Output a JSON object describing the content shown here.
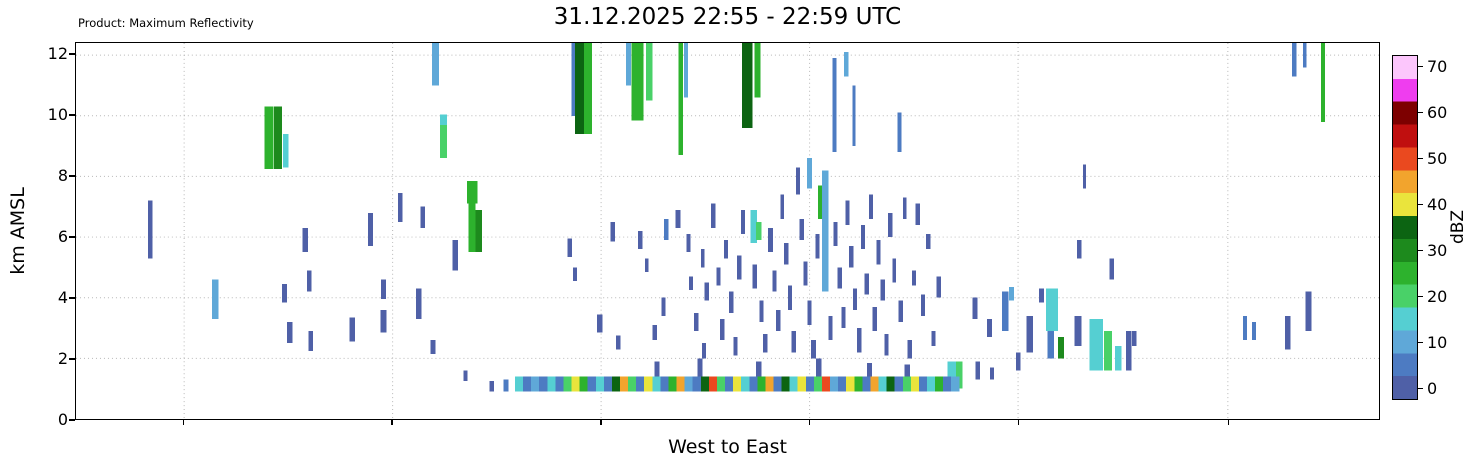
{
  "chart_data": {
    "type": "bar",
    "title": "31.12.2025 22:55 - 22:59 UTC",
    "product_label": "Product: Maximum Reflectivity",
    "xlabel": "West to East",
    "ylabel": "km AMSL",
    "xlim": [
      0,
      100
    ],
    "ylim": [
      0,
      12.4
    ],
    "yticks": [
      0,
      2,
      4,
      6,
      8,
      10,
      12
    ],
    "xticks": [
      8.3,
      24.3,
      40.3,
      56.3,
      72.3,
      88.4
    ],
    "grid": true,
    "colorbar": {
      "label": "dBZ",
      "ticks": [
        0,
        10,
        20,
        30,
        40,
        50,
        60,
        70
      ],
      "vmin": -2.5,
      "vmax": 72.5,
      "bands": [
        {
          "lo": -2.5,
          "hi": 2.5,
          "color": "#4f60a7"
        },
        {
          "lo": 2.5,
          "hi": 7.5,
          "color": "#4d7bc2"
        },
        {
          "lo": 7.5,
          "hi": 12.5,
          "color": "#5fa8d8"
        },
        {
          "lo": 12.5,
          "hi": 17.5,
          "color": "#55cfd2"
        },
        {
          "lo": 17.5,
          "hi": 22.5,
          "color": "#49d168"
        },
        {
          "lo": 22.5,
          "hi": 27.5,
          "color": "#2db22d"
        },
        {
          "lo": 27.5,
          "hi": 32.5,
          "color": "#1d8a1d"
        },
        {
          "lo": 32.5,
          "hi": 37.5,
          "color": "#0c6412"
        },
        {
          "lo": 37.5,
          "hi": 42.5,
          "color": "#eae43c"
        },
        {
          "lo": 42.5,
          "hi": 47.5,
          "color": "#f2a42d"
        },
        {
          "lo": 47.5,
          "hi": 52.5,
          "color": "#ea491f"
        },
        {
          "lo": 52.5,
          "hi": 57.5,
          "color": "#c00f0f"
        },
        {
          "lo": 57.5,
          "hi": 62.5,
          "color": "#7d0000"
        },
        {
          "lo": 62.5,
          "hi": 67.5,
          "color": "#ef3def"
        },
        {
          "lo": 67.5,
          "hi": 72.5,
          "color": "#fcc6fc"
        }
      ]
    },
    "echo_fields": [
      "x",
      "y0_km",
      "y1_km",
      "dbz",
      "width_x"
    ],
    "surface_layer": {
      "y0": 0.9,
      "y1": 1.4,
      "x_start": 34.0,
      "step": 0.62,
      "width": 0.62,
      "dbz": [
        14,
        5,
        10,
        5,
        14,
        5,
        20,
        40,
        25,
        5,
        14,
        5,
        35,
        45,
        20,
        5,
        40,
        14,
        5,
        25,
        45,
        10,
        5,
        35,
        50,
        20,
        5,
        40,
        14,
        5,
        25,
        45,
        5,
        35,
        14,
        40,
        5,
        20,
        50,
        10,
        5,
        40,
        25,
        5,
        45,
        14,
        35,
        5,
        20,
        40,
        5,
        14,
        25,
        5,
        10
      ]
    },
    "echoes": [
      [
        5.7,
        5.3,
        7.2,
        2,
        0.35
      ],
      [
        10.7,
        3.3,
        4.6,
        10,
        0.5
      ],
      [
        14.8,
        8.25,
        10.3,
        25,
        0.7
      ],
      [
        15.5,
        8.25,
        10.3,
        30,
        0.6
      ],
      [
        16.1,
        8.3,
        9.4,
        14,
        0.45
      ],
      [
        16.0,
        3.85,
        4.45,
        2,
        0.4
      ],
      [
        16.4,
        2.5,
        3.2,
        2,
        0.4
      ],
      [
        17.6,
        5.5,
        6.3,
        2,
        0.4
      ],
      [
        17.9,
        4.2,
        4.9,
        2,
        0.35
      ],
      [
        18.0,
        2.25,
        2.9,
        2,
        0.35
      ],
      [
        21.2,
        2.55,
        3.35,
        2,
        0.45
      ],
      [
        22.6,
        5.7,
        6.8,
        2,
        0.4
      ],
      [
        23.6,
        2.85,
        3.6,
        2,
        0.45
      ],
      [
        23.6,
        3.95,
        4.6,
        2,
        0.35
      ],
      [
        24.9,
        6.5,
        7.45,
        2,
        0.35
      ],
      [
        26.3,
        3.3,
        4.3,
        2,
        0.45
      ],
      [
        26.6,
        6.3,
        7.0,
        2,
        0.35
      ],
      [
        27.6,
        11.0,
        12.4,
        10,
        0.55
      ],
      [
        27.4,
        2.15,
        2.6,
        2,
        0.35
      ],
      [
        28.2,
        8.6,
        9.7,
        22,
        0.55
      ],
      [
        28.2,
        9.7,
        10.05,
        14,
        0.55
      ],
      [
        29.1,
        4.9,
        5.9,
        2,
        0.4
      ],
      [
        29.9,
        1.25,
        1.6,
        2,
        0.3
      ],
      [
        30.4,
        7.1,
        7.85,
        27,
        0.8
      ],
      [
        30.4,
        5.5,
        7.1,
        25,
        0.55
      ],
      [
        30.9,
        5.5,
        6.9,
        31,
        0.5
      ],
      [
        31.9,
        0.9,
        1.25,
        2,
        0.35
      ],
      [
        33.0,
        0.9,
        1.3,
        6,
        0.4
      ],
      [
        37.9,
        5.35,
        5.95,
        2,
        0.35
      ],
      [
        38.3,
        4.55,
        5.0,
        2,
        0.3
      ],
      [
        38.2,
        10.0,
        12.4,
        6,
        0.35
      ],
      [
        38.65,
        9.4,
        12.4,
        33,
        0.7
      ],
      [
        39.3,
        9.4,
        12.4,
        26,
        0.6
      ],
      [
        40.2,
        2.85,
        3.45,
        2,
        0.4
      ],
      [
        41.2,
        5.85,
        6.5,
        2,
        0.35
      ],
      [
        41.6,
        2.3,
        2.75,
        2,
        0.35
      ],
      [
        42.4,
        11.0,
        12.4,
        8,
        0.4
      ],
      [
        43.1,
        9.85,
        12.4,
        25,
        0.9
      ],
      [
        44.0,
        10.5,
        12.4,
        22,
        0.5
      ],
      [
        43.3,
        5.6,
        6.2,
        2,
        0.35
      ],
      [
        43.8,
        4.85,
        5.3,
        2,
        0.3
      ],
      [
        44.4,
        2.6,
        3.1,
        2,
        0.35
      ],
      [
        44.6,
        1.4,
        1.9,
        2,
        0.4
      ],
      [
        45.3,
        5.9,
        6.6,
        6,
        0.35
      ],
      [
        45.1,
        3.4,
        4.0,
        2,
        0.3
      ],
      [
        46.4,
        8.7,
        12.4,
        25,
        0.35
      ],
      [
        46.8,
        10.6,
        12.4,
        8,
        0.3
      ],
      [
        46.2,
        6.3,
        6.9,
        2,
        0.35
      ],
      [
        47.0,
        5.5,
        6.1,
        2,
        0.3
      ],
      [
        47.2,
        4.25,
        4.7,
        2,
        0.3
      ],
      [
        47.6,
        2.9,
        3.5,
        2,
        0.35
      ],
      [
        47.9,
        1.4,
        2.0,
        2,
        0.4
      ],
      [
        48.1,
        5.0,
        5.6,
        2,
        0.3
      ],
      [
        48.4,
        3.9,
        4.5,
        2,
        0.35
      ],
      [
        48.2,
        2.0,
        2.5,
        2,
        0.3
      ],
      [
        48.9,
        6.3,
        7.1,
        2,
        0.35
      ],
      [
        49.3,
        4.4,
        5.0,
        2,
        0.3
      ],
      [
        49.6,
        2.6,
        3.3,
        2,
        0.35
      ],
      [
        49.9,
        5.3,
        5.9,
        2,
        0.3
      ],
      [
        50.3,
        3.5,
        4.2,
        2,
        0.35
      ],
      [
        50.6,
        2.1,
        2.7,
        2,
        0.3
      ],
      [
        50.9,
        4.6,
        5.4,
        2,
        0.35
      ],
      [
        51.2,
        6.1,
        6.9,
        2,
        0.3
      ],
      [
        51.5,
        9.6,
        12.4,
        33,
        0.8
      ],
      [
        52.3,
        10.6,
        12.4,
        25,
        0.45
      ],
      [
        52.0,
        5.8,
        6.9,
        14,
        0.5
      ],
      [
        52.4,
        5.9,
        6.5,
        22,
        0.4
      ],
      [
        52.1,
        4.3,
        5.1,
        2,
        0.35
      ],
      [
        52.4,
        1.4,
        1.9,
        2,
        0.4
      ],
      [
        52.6,
        3.2,
        3.9,
        2,
        0.3
      ],
      [
        52.9,
        2.2,
        2.8,
        2,
        0.35
      ],
      [
        53.3,
        5.5,
        6.3,
        2,
        0.35
      ],
      [
        53.6,
        4.2,
        4.9,
        2,
        0.3
      ],
      [
        53.9,
        2.9,
        3.6,
        2,
        0.35
      ],
      [
        54.2,
        6.6,
        7.4,
        2,
        0.3
      ],
      [
        54.5,
        5.1,
        5.8,
        2,
        0.35
      ],
      [
        54.8,
        3.6,
        4.4,
        2,
        0.3
      ],
      [
        55.1,
        2.2,
        2.9,
        2,
        0.35
      ],
      [
        55.4,
        7.4,
        8.3,
        2,
        0.3
      ],
      [
        55.7,
        5.9,
        6.6,
        2,
        0.35
      ],
      [
        56.0,
        4.4,
        5.2,
        2,
        0.3
      ],
      [
        56.3,
        7.6,
        8.6,
        10,
        0.4
      ],
      [
        56.3,
        3.1,
        3.9,
        2,
        0.3
      ],
      [
        56.6,
        2.0,
        2.6,
        2,
        0.35
      ],
      [
        56.9,
        5.3,
        6.1,
        2,
        0.3
      ],
      [
        57.0,
        1.4,
        2.0,
        2,
        0.4
      ],
      [
        57.2,
        6.6,
        7.7,
        25,
        0.5
      ],
      [
        57.5,
        4.2,
        8.2,
        10,
        0.5
      ],
      [
        57.9,
        2.6,
        3.4,
        2,
        0.3
      ],
      [
        58.2,
        8.8,
        11.9,
        6,
        0.3
      ],
      [
        58.3,
        5.7,
        6.5,
        2,
        0.3
      ],
      [
        58.6,
        4.3,
        5.0,
        2,
        0.35
      ],
      [
        58.9,
        3.0,
        3.7,
        2,
        0.3
      ],
      [
        59.1,
        11.3,
        12.1,
        10,
        0.35
      ],
      [
        59.2,
        6.4,
        7.2,
        2,
        0.3
      ],
      [
        59.5,
        5.0,
        5.7,
        2,
        0.35
      ],
      [
        59.7,
        9.0,
        11.0,
        6,
        0.25
      ],
      [
        59.8,
        3.6,
        4.3,
        2,
        0.3
      ],
      [
        60.1,
        2.2,
        3.0,
        2,
        0.35
      ],
      [
        60.4,
        5.6,
        6.4,
        2,
        0.3
      ],
      [
        60.7,
        4.1,
        4.8,
        2,
        0.35
      ],
      [
        60.9,
        1.4,
        1.85,
        2,
        0.4
      ],
      [
        61.0,
        6.6,
        7.4,
        2,
        0.3
      ],
      [
        61.3,
        2.9,
        3.7,
        2,
        0.35
      ],
      [
        61.6,
        5.1,
        5.9,
        2,
        0.3
      ],
      [
        61.9,
        3.9,
        4.6,
        2,
        0.35
      ],
      [
        62.2,
        2.1,
        2.8,
        2,
        0.3
      ],
      [
        62.5,
        6.0,
        6.8,
        2,
        0.35
      ],
      [
        62.8,
        4.5,
        5.3,
        2,
        0.3
      ],
      [
        63.2,
        8.8,
        10.1,
        6,
        0.3
      ],
      [
        63.3,
        3.2,
        3.9,
        2,
        0.35
      ],
      [
        63.6,
        6.6,
        7.3,
        2,
        0.3
      ],
      [
        63.8,
        1.4,
        1.8,
        2,
        0.4
      ],
      [
        64.0,
        2.0,
        2.6,
        2,
        0.35
      ],
      [
        64.3,
        4.4,
        4.9,
        2,
        0.3
      ],
      [
        64.6,
        6.4,
        7.1,
        2,
        0.35
      ],
      [
        65.0,
        3.4,
        4.1,
        2,
        0.3
      ],
      [
        65.4,
        5.6,
        6.1,
        2,
        0.35
      ],
      [
        65.8,
        2.4,
        2.9,
        2,
        0.3
      ],
      [
        66.2,
        4.0,
        4.7,
        2,
        0.35
      ],
      [
        67.3,
        0.9,
        1.9,
        14,
        0.8
      ],
      [
        67.8,
        1.0,
        1.9,
        22,
        0.5
      ],
      [
        69.0,
        3.3,
        4.0,
        2,
        0.4
      ],
      [
        69.2,
        1.3,
        1.9,
        2,
        0.35
      ],
      [
        70.1,
        2.7,
        3.3,
        2,
        0.4
      ],
      [
        70.3,
        1.3,
        1.7,
        2,
        0.3
      ],
      [
        71.3,
        2.9,
        4.2,
        6,
        0.5
      ],
      [
        71.8,
        3.9,
        4.35,
        10,
        0.4
      ],
      [
        72.3,
        1.6,
        2.2,
        2,
        0.35
      ],
      [
        73.2,
        2.2,
        3.4,
        2,
        0.5
      ],
      [
        74.1,
        3.85,
        4.3,
        2,
        0.4
      ],
      [
        74.9,
        2.9,
        4.3,
        14,
        0.9
      ],
      [
        74.8,
        2.0,
        2.9,
        6,
        0.5
      ],
      [
        75.6,
        2.0,
        2.7,
        31,
        0.45
      ],
      [
        76.9,
        2.4,
        3.4,
        2,
        0.5
      ],
      [
        77.0,
        5.3,
        5.9,
        2,
        0.35
      ],
      [
        77.4,
        7.6,
        8.4,
        2,
        0.25
      ],
      [
        78.3,
        1.6,
        3.3,
        14,
        1.0
      ],
      [
        79.2,
        1.6,
        2.9,
        20,
        0.6
      ],
      [
        79.5,
        4.6,
        5.3,
        2,
        0.35
      ],
      [
        80.0,
        1.6,
        2.4,
        14,
        0.5
      ],
      [
        80.8,
        1.6,
        2.9,
        2,
        0.45
      ],
      [
        81.2,
        2.4,
        2.9,
        2,
        0.35
      ],
      [
        89.7,
        2.6,
        3.4,
        6,
        0.3
      ],
      [
        90.4,
        2.6,
        3.2,
        6,
        0.3
      ],
      [
        93.0,
        2.3,
        3.4,
        2,
        0.45
      ],
      [
        93.5,
        11.3,
        12.4,
        6,
        0.35
      ],
      [
        94.3,
        11.6,
        12.4,
        6,
        0.3
      ],
      [
        94.6,
        2.9,
        4.2,
        2,
        0.45
      ],
      [
        95.7,
        9.8,
        12.4,
        25,
        0.3
      ]
    ]
  }
}
